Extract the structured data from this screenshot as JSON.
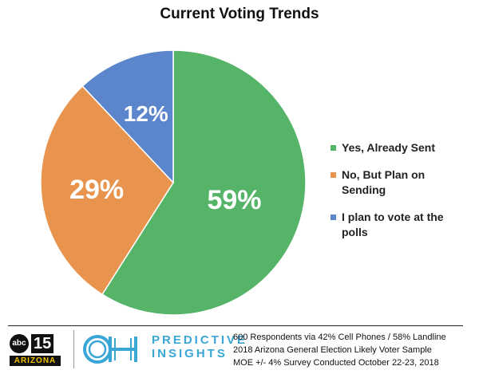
{
  "chart_data": {
    "type": "pie",
    "title": "Current Voting Trends",
    "slices": [
      {
        "label": "Yes, Already Sent",
        "value": 59,
        "display": "59%",
        "color": "#55b468"
      },
      {
        "label": "No, But Plan on Sending",
        "value": 29,
        "display": "29%",
        "color": "#e8944e"
      },
      {
        "label": "I plan to vote at the polls",
        "value": 12,
        "display": "12%",
        "color": "#5b86cc"
      }
    ],
    "legend_position": "right"
  },
  "legend": {
    "items": [
      {
        "label_lines": [
          "Yes, Already Sent"
        ],
        "color": "#55b468"
      },
      {
        "label_lines": [
          "No, But Plan on",
          "Sending"
        ],
        "color": "#e8944e"
      },
      {
        "label_lines": [
          "I plan to vote at the",
          "polls"
        ],
        "color": "#5b86cc"
      }
    ]
  },
  "footer": {
    "abc_logo": {
      "network": "abc",
      "channel": "15",
      "state": "ARIZONA"
    },
    "predictive_logo": {
      "mark": "OH",
      "line1": "PREDICTIVE",
      "line2": "INSIGHTS"
    },
    "sample_info": [
      "600 Respondents via 42% Cell Phones / 58% Landline",
      "2018 Arizona General Election Likely Voter Sample",
      "MOE +/- 4% Survey Conducted October 22-23, 2018"
    ],
    "colors": {
      "accent_blue": "#3aa6d6",
      "abc_yellow": "#f2c200"
    }
  }
}
